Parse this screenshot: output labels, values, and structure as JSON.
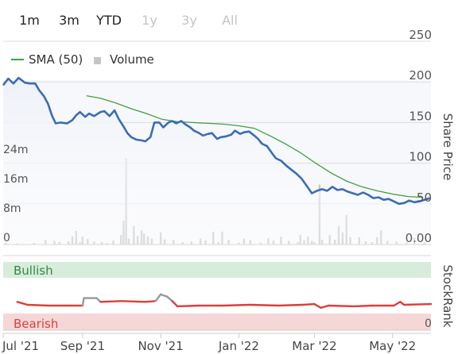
{
  "range_buttons": [
    {
      "label": "1m",
      "enabled": true
    },
    {
      "label": "3m",
      "enabled": true
    },
    {
      "label": "YTD",
      "enabled": true
    },
    {
      "label": "1y",
      "enabled": false
    },
    {
      "label": "3y",
      "enabled": false
    },
    {
      "label": "All",
      "enabled": false
    }
  ],
  "legend": {
    "sma_label": "SMA (50)",
    "volume_label": "Volume"
  },
  "colors": {
    "price": "#3a6db5",
    "sma": "#3da23d",
    "volume": "#c5c5c5",
    "stockrank": "#d9403b",
    "stockrank_peak": "#999999",
    "bullish_band": "#d8ecdc",
    "bearish_band": "#f6d7d7",
    "plot_bg_top": "#f7f8fc"
  },
  "chart_data": {
    "type": "line",
    "x_start": "2021-07-01",
    "x_end": "2022-05-31",
    "x_ticks": [
      "Jul '21",
      "Sep '21",
      "Nov '21",
      "Jan '22",
      "Mar '22",
      "May '22"
    ],
    "x_tick_dates": [
      "2021-07-01",
      "2021-09-01",
      "2021-11-01",
      "2022-01-01",
      "2022-03-01",
      "2022-05-01"
    ],
    "price_axis": {
      "label": "Share Price",
      "min": 0,
      "max": 250,
      "ticks": [
        "0.00",
        "50",
        "100",
        "150",
        "200",
        "250"
      ]
    },
    "volume_axis": {
      "min": 0,
      "max": 32,
      "ticks": [
        "0",
        "8m",
        "16m",
        "24m"
      ]
    },
    "stockrank_axis": {
      "label": "StockRank",
      "min": 0,
      "max": 100,
      "ticks": [
        "0"
      ],
      "bands": [
        "Bullish",
        "Bearish"
      ]
    },
    "series": [
      {
        "name": "Share Price",
        "points": [
          [
            "2021-07-01",
            196
          ],
          [
            "2021-07-05",
            204
          ],
          [
            "2021-07-09",
            198
          ],
          [
            "2021-07-13",
            205
          ],
          [
            "2021-07-18",
            199
          ],
          [
            "2021-07-22",
            198
          ],
          [
            "2021-07-26",
            198
          ],
          [
            "2021-07-29",
            190
          ],
          [
            "2021-08-02",
            182
          ],
          [
            "2021-08-05",
            173
          ],
          [
            "2021-08-08",
            159
          ],
          [
            "2021-08-11",
            149
          ],
          [
            "2021-08-15",
            150
          ],
          [
            "2021-08-20",
            149
          ],
          [
            "2021-08-24",
            153
          ],
          [
            "2021-08-27",
            159
          ],
          [
            "2021-08-30",
            163
          ],
          [
            "2021-09-03",
            157
          ],
          [
            "2021-09-06",
            161
          ],
          [
            "2021-09-10",
            158
          ],
          [
            "2021-09-15",
            163
          ],
          [
            "2021-09-18",
            164
          ],
          [
            "2021-09-22",
            158
          ],
          [
            "2021-09-26",
            165
          ],
          [
            "2021-09-29",
            155
          ],
          [
            "2021-10-03",
            145
          ],
          [
            "2021-10-06",
            137
          ],
          [
            "2021-10-09",
            132
          ],
          [
            "2021-10-13",
            129
          ],
          [
            "2021-10-17",
            128
          ],
          [
            "2021-10-20",
            127
          ],
          [
            "2021-10-24",
            132
          ],
          [
            "2021-10-27",
            150
          ],
          [
            "2021-10-31",
            150
          ],
          [
            "2021-11-03",
            144
          ],
          [
            "2021-11-07",
            150
          ],
          [
            "2021-11-10",
            152
          ],
          [
            "2021-11-13",
            149
          ],
          [
            "2021-11-17",
            152
          ],
          [
            "2021-11-20",
            148
          ],
          [
            "2021-11-24",
            144
          ],
          [
            "2021-11-27",
            140
          ],
          [
            "2021-12-01",
            137
          ],
          [
            "2021-12-04",
            134
          ],
          [
            "2021-12-08",
            136
          ],
          [
            "2021-12-11",
            137
          ],
          [
            "2021-12-15",
            130
          ],
          [
            "2021-12-18",
            132
          ],
          [
            "2021-12-22",
            133
          ],
          [
            "2021-12-26",
            135
          ],
          [
            "2021-12-29",
            140
          ],
          [
            "2022-01-02",
            136
          ],
          [
            "2022-01-05",
            138
          ],
          [
            "2022-01-09",
            139
          ],
          [
            "2022-01-13",
            134
          ],
          [
            "2022-01-16",
            130
          ],
          [
            "2022-01-19",
            124
          ],
          [
            "2022-01-23",
            121
          ],
          [
            "2022-01-27",
            112
          ],
          [
            "2022-01-30",
            106
          ],
          [
            "2022-02-03",
            103
          ],
          [
            "2022-02-07",
            97
          ],
          [
            "2022-02-11",
            92
          ],
          [
            "2022-02-15",
            87
          ],
          [
            "2022-02-19",
            81
          ],
          [
            "2022-02-23",
            72
          ],
          [
            "2022-02-27",
            63
          ],
          [
            "2022-03-03",
            66
          ],
          [
            "2022-03-07",
            68
          ],
          [
            "2022-03-11",
            66
          ],
          [
            "2022-03-15",
            71
          ],
          [
            "2022-03-19",
            67
          ],
          [
            "2022-03-23",
            68
          ],
          [
            "2022-03-27",
            65
          ],
          [
            "2022-03-31",
            63
          ],
          [
            "2022-04-04",
            61
          ],
          [
            "2022-04-08",
            64
          ],
          [
            "2022-04-12",
            61
          ],
          [
            "2022-04-16",
            57
          ],
          [
            "2022-04-20",
            58
          ],
          [
            "2022-04-24",
            55
          ],
          [
            "2022-04-28",
            56
          ],
          [
            "2022-05-02",
            53
          ],
          [
            "2022-05-06",
            50
          ],
          [
            "2022-05-10",
            51
          ],
          [
            "2022-05-14",
            54
          ],
          [
            "2022-05-18",
            52
          ],
          [
            "2022-05-22",
            53
          ],
          [
            "2022-05-26",
            55
          ],
          [
            "2022-05-30",
            57
          ]
        ]
      },
      {
        "name": "SMA (50)",
        "points": [
          [
            "2021-09-04",
            183
          ],
          [
            "2021-09-15",
            180
          ],
          [
            "2021-09-27",
            174
          ],
          [
            "2021-10-09",
            167
          ],
          [
            "2021-10-21",
            161
          ],
          [
            "2021-11-02",
            154
          ],
          [
            "2021-11-14",
            151
          ],
          [
            "2021-11-26",
            150
          ],
          [
            "2021-12-08",
            149
          ],
          [
            "2021-12-20",
            148
          ],
          [
            "2022-01-01",
            146
          ],
          [
            "2022-01-13",
            143
          ],
          [
            "2022-01-25",
            134
          ],
          [
            "2022-02-06",
            124
          ],
          [
            "2022-02-18",
            113
          ],
          [
            "2022-03-02",
            100
          ],
          [
            "2022-03-14",
            88
          ],
          [
            "2022-03-26",
            78
          ],
          [
            "2022-04-07",
            71
          ],
          [
            "2022-04-19",
            66
          ],
          [
            "2022-05-01",
            62
          ],
          [
            "2022-05-13",
            59
          ],
          [
            "2022-05-25",
            58
          ]
        ]
      },
      {
        "name": "Volume",
        "points": [
          [
            "2021-07-03",
            0.5
          ],
          [
            "2021-07-12",
            0.3
          ],
          [
            "2021-07-25",
            0.4
          ],
          [
            "2021-08-03",
            1.2
          ],
          [
            "2021-08-10",
            1.0
          ],
          [
            "2021-08-14",
            0.7
          ],
          [
            "2021-08-21",
            0.8
          ],
          [
            "2021-08-24",
            2.2
          ],
          [
            "2021-08-27",
            3.7
          ],
          [
            "2021-08-30",
            0.6
          ],
          [
            "2021-09-01",
            2.1
          ],
          [
            "2021-09-05",
            1.5
          ],
          [
            "2021-09-10",
            0.8
          ],
          [
            "2021-09-16",
            0.6
          ],
          [
            "2021-09-20",
            0.4
          ],
          [
            "2021-09-25",
            1.1
          ],
          [
            "2021-10-01",
            2.6
          ],
          [
            "2021-10-03",
            6.5
          ],
          [
            "2021-10-05",
            23.5
          ],
          [
            "2021-10-07",
            1.6
          ],
          [
            "2021-10-11",
            5.0
          ],
          [
            "2021-10-14",
            2.3
          ],
          [
            "2021-10-17",
            3.8
          ],
          [
            "2021-10-19",
            3.0
          ],
          [
            "2021-10-22",
            2.2
          ],
          [
            "2021-10-25",
            1.6
          ],
          [
            "2021-11-01",
            3.3
          ],
          [
            "2021-11-04",
            1.4
          ],
          [
            "2021-11-11",
            1.2
          ],
          [
            "2021-11-18",
            0.6
          ],
          [
            "2021-11-25",
            0.8
          ],
          [
            "2021-12-02",
            1.6
          ],
          [
            "2021-12-06",
            1.1
          ],
          [
            "2021-12-12",
            3.5
          ],
          [
            "2021-12-16",
            0.6
          ],
          [
            "2021-12-19",
            3.5
          ],
          [
            "2021-12-24",
            1.3
          ],
          [
            "2022-01-01",
            0.5
          ],
          [
            "2022-01-05",
            1.6
          ],
          [
            "2022-01-10",
            1.2
          ],
          [
            "2022-01-18",
            0.5
          ],
          [
            "2022-01-24",
            1.7
          ],
          [
            "2022-01-28",
            1.1
          ],
          [
            "2022-02-03",
            2.1
          ],
          [
            "2022-02-09",
            1.0
          ],
          [
            "2022-02-16",
            0.6
          ],
          [
            "2022-02-18",
            2.6
          ],
          [
            "2022-02-21",
            1.2
          ],
          [
            "2022-02-24",
            2.1
          ],
          [
            "2022-02-27",
            1.0
          ],
          [
            "2022-03-01",
            0.7
          ],
          [
            "2022-03-05",
            16.3
          ],
          [
            "2022-03-07",
            1.3
          ],
          [
            "2022-03-13",
            2.6
          ],
          [
            "2022-03-17",
            1.3
          ],
          [
            "2022-03-20",
            5.0
          ],
          [
            "2022-03-23",
            3.3
          ],
          [
            "2022-03-26",
            8.0
          ],
          [
            "2022-03-29",
            2.0
          ],
          [
            "2022-04-05",
            2.0
          ],
          [
            "2022-04-10",
            0.8
          ],
          [
            "2022-04-15",
            0.6
          ],
          [
            "2022-04-19",
            2.0
          ],
          [
            "2022-04-22",
            3.8
          ],
          [
            "2022-04-27",
            1.0
          ],
          [
            "2022-05-04",
            0.8
          ],
          [
            "2022-05-12",
            0.5
          ],
          [
            "2022-05-18",
            1.8
          ],
          [
            "2022-05-26",
            0.5
          ]
        ]
      },
      {
        "name": "StockRank",
        "points": [
          [
            "2021-07-12",
            38
          ],
          [
            "2021-07-20",
            34
          ],
          [
            "2021-08-05",
            33
          ],
          [
            "2021-08-20",
            33
          ],
          [
            "2021-09-01",
            33
          ],
          [
            "2021-09-02",
            43
          ],
          [
            "2021-09-12",
            43
          ],
          [
            "2021-09-15",
            38
          ],
          [
            "2021-10-01",
            39
          ],
          [
            "2021-10-20",
            38
          ],
          [
            "2021-10-28",
            39
          ],
          [
            "2021-11-01",
            48
          ],
          [
            "2021-11-06",
            45
          ],
          [
            "2021-11-10",
            39
          ],
          [
            "2021-11-14",
            32
          ],
          [
            "2021-12-01",
            33
          ],
          [
            "2021-12-20",
            33
          ],
          [
            "2022-01-10",
            34
          ],
          [
            "2022-02-01",
            33
          ],
          [
            "2022-02-20",
            34
          ],
          [
            "2022-03-01",
            35
          ],
          [
            "2022-03-06",
            30
          ],
          [
            "2022-03-12",
            33
          ],
          [
            "2022-04-01",
            32
          ],
          [
            "2022-04-15",
            33
          ],
          [
            "2022-05-02",
            33
          ],
          [
            "2022-05-07",
            38
          ],
          [
            "2022-05-10",
            34
          ],
          [
            "2022-05-31",
            35
          ]
        ]
      }
    ]
  }
}
